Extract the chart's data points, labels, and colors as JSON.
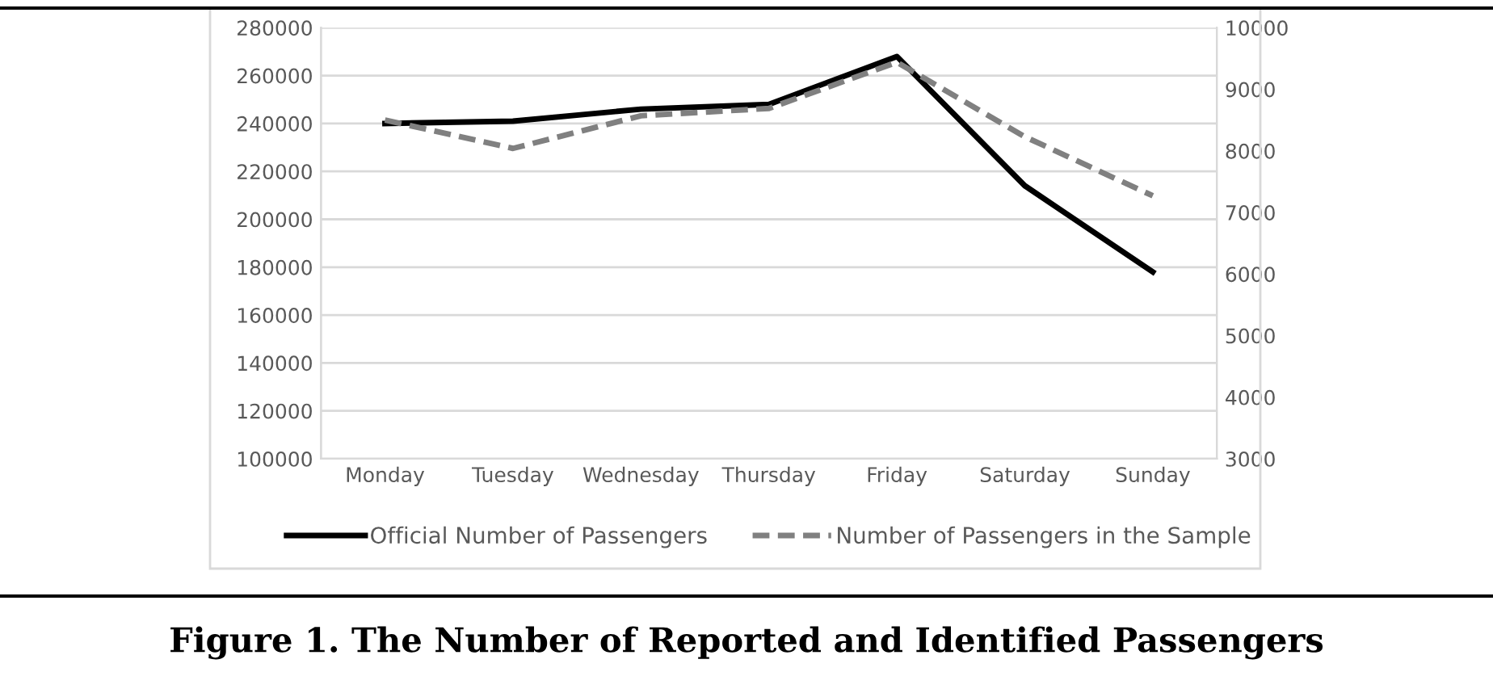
{
  "chart_data": {
    "type": "line",
    "title": "Figure 1. The Number of Reported and Identified Passengers",
    "categories": [
      "Monday",
      "Tuesday",
      "Wednesday",
      "Thursday",
      "Friday",
      "Saturday",
      "Sunday"
    ],
    "series": [
      {
        "name": "Official Number of Passengers",
        "color": "#000000",
        "line_style": "solid",
        "values": [
          240000,
          241000,
          246000,
          248000,
          268000,
          214000,
          178000
        ]
      },
      {
        "name": "Number of Passengers in the Sample",
        "color": "#808080",
        "line_style": "dashed",
        "axis": "y2",
        "values": [
          8500,
          8040,
          8570,
          8690,
          9440,
          8230,
          7270
        ]
      }
    ],
    "ylim": [
      100000,
      280000
    ],
    "yticks": [
      100000,
      120000,
      140000,
      160000,
      180000,
      200000,
      220000,
      240000,
      260000,
      280000
    ],
    "y2lim": [
      3000,
      10000
    ],
    "y2ticks": [
      3000,
      4000,
      5000,
      6000,
      7000,
      8000,
      9000,
      10000
    ],
    "grid": "y",
    "legend": "bottom",
    "marker": "none"
  }
}
